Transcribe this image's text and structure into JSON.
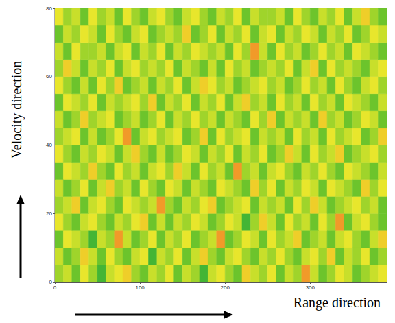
{
  "chart_data": {
    "type": "heatmap",
    "xlabel": "Range direction",
    "ylabel": "Velocity direction",
    "xlim": [
      0,
      390
    ],
    "xticks": [
      0,
      100,
      200,
      300
    ],
    "ylim": [
      0,
      80
    ],
    "yticks": [
      0,
      20,
      40,
      60,
      80
    ],
    "grid": false,
    "value_range": [
      0,
      9
    ],
    "x_edges": [
      0,
      10,
      20,
      30,
      40,
      50,
      60,
      70,
      80,
      90,
      100,
      110,
      120,
      130,
      140,
      150,
      160,
      170,
      180,
      190,
      200,
      210,
      220,
      230,
      240,
      250,
      260,
      270,
      280,
      290,
      300,
      310,
      320,
      330,
      340,
      350,
      360,
      370,
      380,
      390
    ],
    "y_edges": [
      0,
      5,
      10,
      15,
      20,
      25,
      30,
      35,
      40,
      45,
      50,
      55,
      60,
      65,
      70,
      75,
      80
    ],
    "values": [
      [
        4,
        5,
        3,
        6,
        4,
        2,
        5,
        6,
        7,
        4,
        3,
        5,
        4,
        6,
        3,
        5,
        4,
        2,
        5,
        6,
        4,
        3,
        7,
        5,
        4,
        6,
        3,
        5,
        4,
        8,
        5,
        3,
        4,
        6,
        5,
        3,
        4,
        5,
        6
      ],
      [
        5,
        3,
        4,
        7,
        5,
        3,
        6,
        4,
        3,
        5,
        6,
        2,
        5,
        4,
        6,
        3,
        5,
        7,
        4,
        3,
        5,
        6,
        4,
        3,
        5,
        4,
        6,
        4,
        3,
        5,
        6,
        4,
        7,
        3,
        5,
        4,
        6,
        3,
        4
      ],
      [
        3,
        6,
        5,
        4,
        2,
        5,
        4,
        8,
        5,
        3,
        4,
        6,
        3,
        5,
        4,
        6,
        3,
        4,
        5,
        8,
        3,
        4,
        6,
        5,
        3,
        6,
        4,
        5,
        7,
        3,
        4,
        5,
        3,
        5,
        6,
        4,
        3,
        5,
        7
      ],
      [
        6,
        4,
        3,
        5,
        6,
        4,
        3,
        5,
        4,
        6,
        7,
        3,
        5,
        3,
        5,
        4,
        6,
        5,
        3,
        4,
        6,
        5,
        2,
        4,
        7,
        5,
        3,
        6,
        4,
        5,
        3,
        6,
        4,
        8,
        3,
        5,
        6,
        4,
        3
      ],
      [
        4,
        5,
        7,
        3,
        5,
        6,
        4,
        3,
        6,
        5,
        4,
        5,
        8,
        4,
        3,
        5,
        4,
        6,
        7,
        3,
        4,
        5,
        6,
        3,
        5,
        4,
        5,
        3,
        6,
        4,
        7,
        5,
        3,
        4,
        5,
        6,
        4,
        5,
        3
      ],
      [
        5,
        3,
        4,
        6,
        3,
        5,
        7,
        4,
        5,
        3,
        6,
        4,
        3,
        6,
        5,
        3,
        5,
        4,
        3,
        6,
        5,
        4,
        3,
        7,
        4,
        6,
        3,
        5,
        4,
        6,
        5,
        3,
        6,
        5,
        4,
        3,
        7,
        4,
        6
      ],
      [
        3,
        6,
        5,
        4,
        7,
        4,
        3,
        6,
        4,
        5,
        3,
        5,
        6,
        4,
        7,
        5,
        3,
        6,
        4,
        5,
        3,
        8,
        4,
        5,
        3,
        5,
        6,
        4,
        3,
        5,
        4,
        6,
        4,
        3,
        6,
        5,
        4,
        3,
        5
      ],
      [
        6,
        4,
        3,
        5,
        4,
        6,
        5,
        3,
        5,
        7,
        4,
        3,
        5,
        3,
        4,
        6,
        5,
        3,
        5,
        4,
        6,
        3,
        5,
        4,
        6,
        3,
        4,
        7,
        5,
        3,
        6,
        4,
        5,
        7,
        3,
        4,
        5,
        6,
        4
      ],
      [
        4,
        5,
        6,
        3,
        5,
        3,
        4,
        6,
        8,
        3,
        5,
        6,
        4,
        5,
        6,
        3,
        4,
        7,
        3,
        6,
        4,
        5,
        6,
        3,
        5,
        4,
        5,
        3,
        6,
        4,
        5,
        3,
        6,
        4,
        5,
        6,
        3,
        4,
        7
      ],
      [
        5,
        3,
        4,
        7,
        4,
        5,
        6,
        3,
        4,
        5,
        3,
        4,
        6,
        3,
        5,
        4,
        6,
        4,
        5,
        3,
        5,
        4,
        3,
        6,
        4,
        7,
        3,
        5,
        4,
        5,
        3,
        7,
        4,
        5,
        3,
        4,
        6,
        5,
        3
      ],
      [
        3,
        6,
        5,
        4,
        6,
        3,
        5,
        4,
        5,
        6,
        4,
        7,
        3,
        5,
        4,
        6,
        3,
        5,
        4,
        6,
        3,
        5,
        7,
        4,
        5,
        3,
        6,
        4,
        5,
        3,
        6,
        4,
        5,
        3,
        6,
        5,
        4,
        3,
        5
      ],
      [
        6,
        4,
        3,
        5,
        3,
        6,
        4,
        7,
        3,
        4,
        5,
        3,
        5,
        4,
        6,
        3,
        5,
        7,
        6,
        4,
        5,
        3,
        4,
        5,
        6,
        4,
        5,
        3,
        4,
        6,
        4,
        5,
        3,
        6,
        4,
        3,
        5,
        6,
        4
      ],
      [
        4,
        7,
        5,
        3,
        5,
        4,
        6,
        3,
        5,
        6,
        4,
        5,
        4,
        6,
        3,
        5,
        4,
        3,
        5,
        3,
        6,
        4,
        5,
        3,
        4,
        5,
        4,
        6,
        3,
        5,
        7,
        3,
        6,
        4,
        5,
        4,
        3,
        5,
        6
      ],
      [
        5,
        3,
        6,
        4,
        4,
        5,
        3,
        5,
        6,
        3,
        5,
        4,
        6,
        3,
        5,
        4,
        6,
        5,
        4,
        5,
        3,
        6,
        4,
        8,
        5,
        3,
        6,
        4,
        5,
        3,
        4,
        6,
        4,
        5,
        3,
        6,
        5,
        4,
        3
      ],
      [
        3,
        5,
        4,
        6,
        5,
        3,
        6,
        4,
        3,
        5,
        6,
        3,
        4,
        5,
        4,
        7,
        3,
        4,
        6,
        3,
        5,
        4,
        6,
        3,
        5,
        6,
        3,
        5,
        4,
        6,
        5,
        3,
        5,
        4,
        6,
        3,
        4,
        6,
        5
      ],
      [
        6,
        4,
        5,
        3,
        6,
        4,
        5,
        3,
        6,
        4,
        3,
        5,
        6,
        4,
        3,
        5,
        6,
        4,
        3,
        5,
        4,
        6,
        3,
        5,
        4,
        4,
        5,
        3,
        6,
        4,
        3,
        5,
        4,
        6,
        3,
        5,
        7,
        4,
        3
      ]
    ]
  }
}
